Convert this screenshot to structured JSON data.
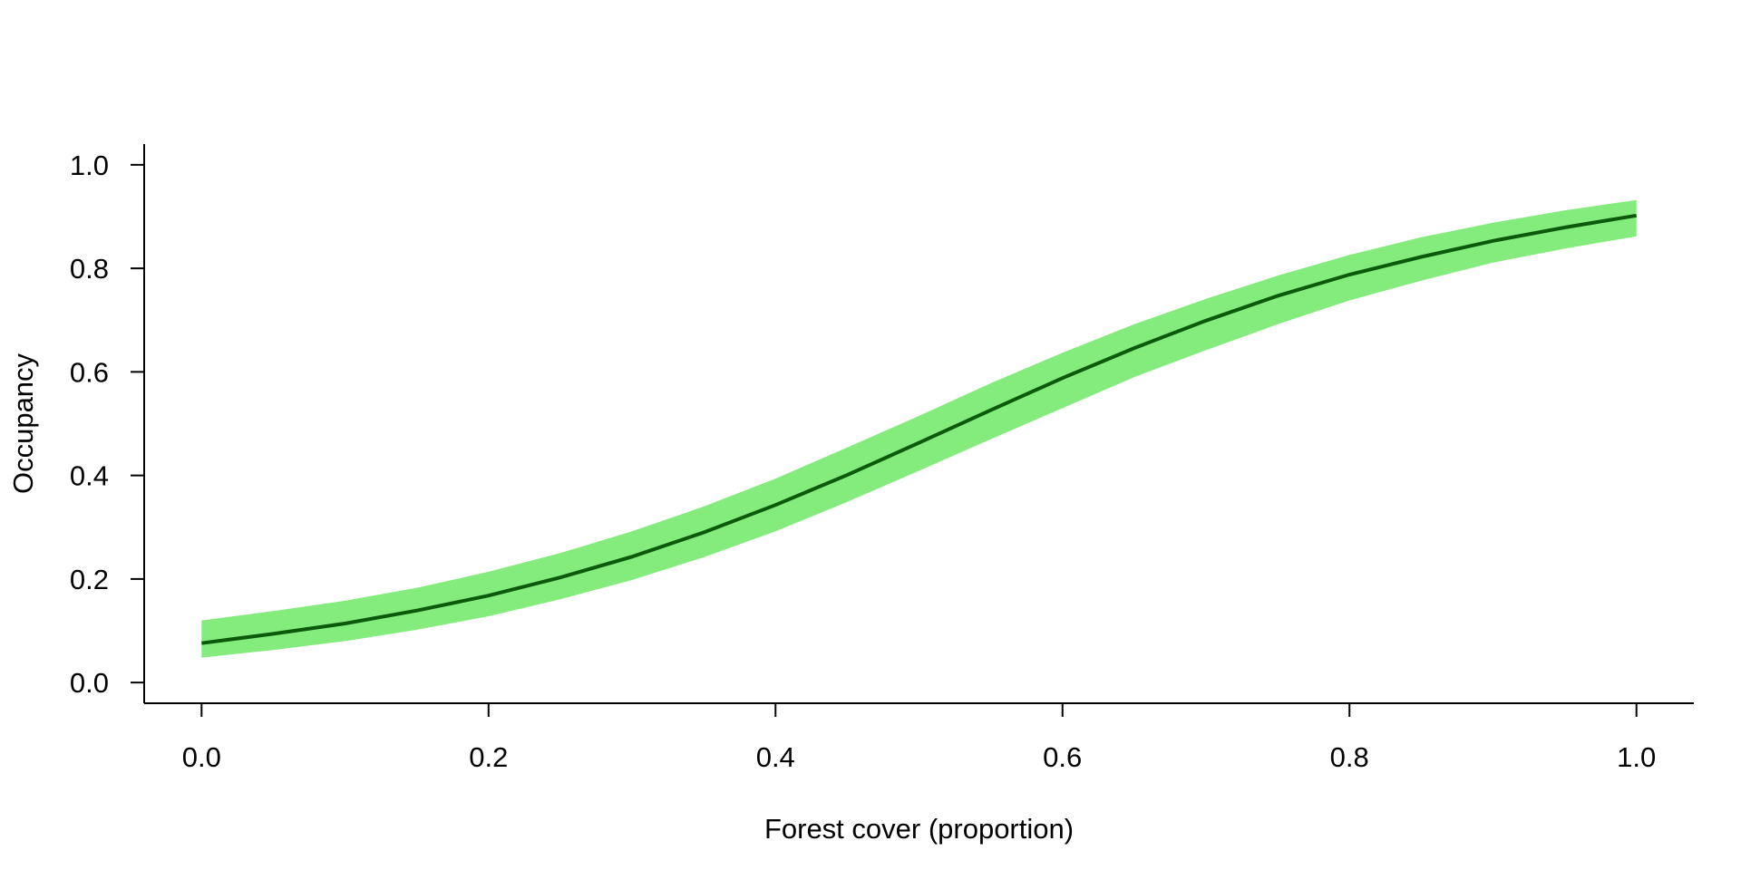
{
  "chart_data": {
    "type": "line",
    "title": "",
    "xlabel": "Forest cover (proportion)",
    "ylabel": "Occupancy",
    "xlim": [
      -0.04,
      1.04
    ],
    "ylim": [
      -0.04,
      1.04
    ],
    "x_ticks": [
      0.0,
      0.2,
      0.4,
      0.6,
      0.8,
      1.0
    ],
    "x_tick_labels": [
      "0.0",
      "0.2",
      "0.4",
      "0.6",
      "0.8",
      "1.0"
    ],
    "y_ticks": [
      0.0,
      0.2,
      0.4,
      0.6,
      0.8,
      1.0
    ],
    "y_tick_labels": [
      "0.0",
      "0.2",
      "0.4",
      "0.6",
      "0.8",
      "1.0"
    ],
    "grid": false,
    "legend": "none",
    "colors": {
      "line": "#0a5a0a",
      "band": "#83ec7c",
      "axis": "#000000"
    },
    "series": [
      {
        "x": [
          0.0,
          0.05,
          0.1,
          0.15,
          0.2,
          0.25,
          0.3,
          0.35,
          0.4,
          0.45,
          0.5,
          0.55,
          0.6,
          0.65,
          0.7,
          0.75,
          0.8,
          0.85,
          0.9,
          0.95,
          1.0
        ],
        "y": [
          0.076,
          0.094,
          0.114,
          0.139,
          0.168,
          0.203,
          0.243,
          0.29,
          0.343,
          0.401,
          0.463,
          0.526,
          0.588,
          0.646,
          0.699,
          0.747,
          0.788,
          0.822,
          0.853,
          0.879,
          0.902
        ],
        "lower": [
          0.048,
          0.063,
          0.08,
          0.102,
          0.128,
          0.161,
          0.198,
          0.242,
          0.292,
          0.349,
          0.409,
          0.47,
          0.53,
          0.59,
          0.642,
          0.692,
          0.738,
          0.776,
          0.811,
          0.838,
          0.862
        ],
        "upper": [
          0.12,
          0.138,
          0.158,
          0.183,
          0.214,
          0.25,
          0.292,
          0.34,
          0.394,
          0.454,
          0.515,
          0.578,
          0.637,
          0.692,
          0.741,
          0.786,
          0.826,
          0.86,
          0.888,
          0.912,
          0.932
        ]
      }
    ]
  }
}
